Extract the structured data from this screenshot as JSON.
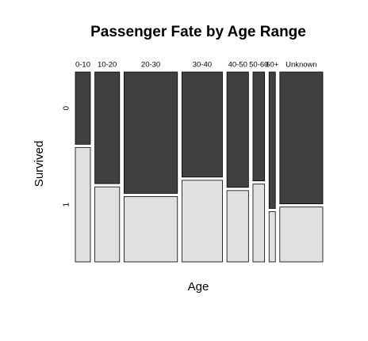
{
  "chart_data": {
    "type": "mosaic",
    "title": "Passenger Fate by Age Range",
    "xlabel": "Age",
    "ylabel": "Survived",
    "categories": [
      "0-10",
      "10-20",
      "20-30",
      "30-40",
      "40-50",
      "50-60",
      "60+",
      "Unknown"
    ],
    "series": [
      {
        "name": "0",
        "color": "#404040",
        "values": [
          24,
          61,
          143,
          94,
          55,
          28,
          19,
          125
        ]
      },
      {
        "name": "1",
        "color": "#e0e0e0",
        "values": [
          38,
          41,
          77,
          73,
          34,
          20,
          7,
          52
        ]
      }
    ]
  }
}
